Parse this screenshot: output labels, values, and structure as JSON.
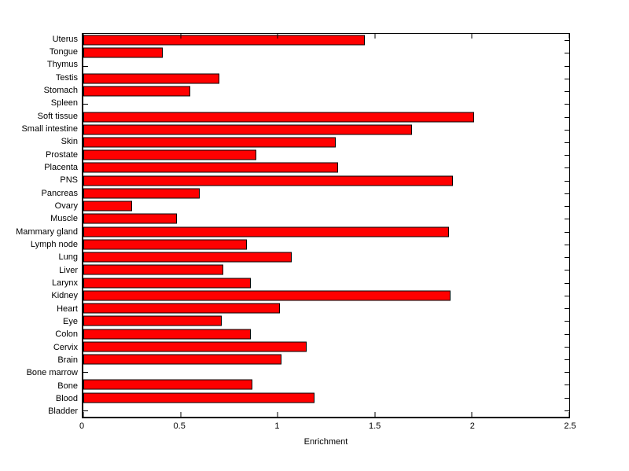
{
  "colors": {
    "bar_fill": "#ff0000",
    "bar_edge": "#000000",
    "axis": "#000000",
    "background": "#ffffff",
    "text": "#000000"
  },
  "chart_data": {
    "type": "bar",
    "orientation": "horizontal",
    "title": "",
    "xlabel": "Enrichment",
    "ylabel": "",
    "xlim": [
      0,
      2.5
    ],
    "xticks": [
      0,
      0.5,
      1,
      1.5,
      2,
      2.5
    ],
    "xtick_labels": [
      "0",
      "0.5",
      "1",
      "1.5",
      "2",
      "2.5"
    ],
    "grid": false,
    "legend": false,
    "categories": [
      "Uterus",
      "Tongue",
      "Thymus",
      "Testis",
      "Stomach",
      "Spleen",
      "Soft tissue",
      "Small intestine",
      "Skin",
      "Prostate",
      "Placenta",
      "PNS",
      "Pancreas",
      "Ovary",
      "Muscle",
      "Mammary gland",
      "Lymph node",
      "Lung",
      "Liver",
      "Larynx",
      "Kidney",
      "Heart",
      "Eye",
      "Colon",
      "Cervix",
      "Brain",
      "Bone marrow",
      "Bone",
      "Blood",
      "Bladder"
    ],
    "values": [
      1.45,
      0.41,
      0,
      0.7,
      0.55,
      0,
      2.01,
      1.69,
      1.3,
      0.89,
      1.31,
      1.9,
      0.6,
      0.25,
      0.48,
      1.88,
      0.84,
      1.07,
      0.72,
      0.86,
      1.89,
      1.01,
      0.71,
      0.86,
      1.15,
      1.02,
      0,
      0.87,
      1.19,
      0
    ]
  }
}
